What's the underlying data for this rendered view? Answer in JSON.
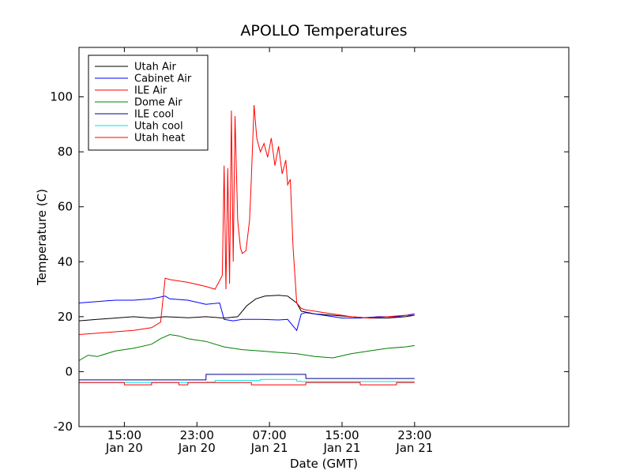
{
  "chart_data": {
    "type": "line",
    "title": "APOLLO Temperatures",
    "xlabel": "Date (GMT)",
    "ylabel": "Temperature (C)",
    "ylim": [
      -20,
      118
    ],
    "xlim": [
      0,
      54
    ],
    "x_unit": "hours since 2022-01-20 10:00 GMT (approx.)",
    "grid": false,
    "legend_position": "top-left",
    "yticks": [
      -20,
      0,
      20,
      40,
      60,
      80,
      100
    ],
    "ytick_labels": [
      "-20",
      "0",
      "20",
      "40",
      "60",
      "80",
      "100"
    ],
    "xticks": [
      {
        "x": 5,
        "time": "15:00",
        "date": "Jan 20"
      },
      {
        "x": 13,
        "time": "23:00",
        "date": "Jan 20"
      },
      {
        "x": 21,
        "time": "07:00",
        "date": "Jan 21"
      },
      {
        "x": 29,
        "time": "15:00",
        "date": "Jan 21"
      },
      {
        "x": 37,
        "time": "23:00",
        "date": "Jan 21"
      }
    ],
    "series": [
      {
        "name": "Utah Air",
        "color": "#000000",
        "x": [
          0,
          2,
          4,
          6,
          8,
          9.5,
          11,
          12,
          14,
          16,
          17.5,
          18.5,
          19.5,
          20.5,
          22,
          23,
          24,
          24.5,
          26,
          28,
          30,
          32,
          34,
          36,
          37
        ],
        "y": [
          18.5,
          19,
          19.5,
          20,
          19.5,
          20,
          19.8,
          19.6,
          20,
          19.5,
          20,
          24,
          26.5,
          27.5,
          27.8,
          27.5,
          25,
          22,
          21,
          20.5,
          20,
          19.5,
          19.5,
          20,
          20.5
        ]
      },
      {
        "name": "Cabinet Air",
        "color": "#0000ff",
        "x": [
          0,
          2,
          4,
          6,
          8,
          9.5,
          10,
          12,
          14,
          15.5,
          16,
          17,
          18,
          20,
          22,
          23,
          24,
          24.5,
          25,
          27,
          29,
          31,
          33,
          35,
          37
        ],
        "y": [
          25,
          25.5,
          26,
          26,
          26.5,
          27.5,
          26.5,
          26,
          24.5,
          25,
          19,
          18.5,
          19,
          19,
          18.8,
          19,
          15,
          21,
          21.5,
          20.5,
          19.5,
          19.5,
          20,
          20,
          21
        ]
      },
      {
        "name": "ILE Air",
        "color": "#ff0000",
        "x": [
          0,
          2,
          4,
          6,
          8,
          9,
          9.5,
          10,
          12,
          14,
          15,
          15.8
        ],
        "y": [
          13.5,
          14,
          14.5,
          15,
          16,
          18,
          34,
          33.5,
          32.5,
          31,
          30,
          35
        ]
      },
      {
        "name": "Dome Air",
        "color": "#008000",
        "x": [
          0,
          1,
          2,
          4,
          6,
          8,
          9,
          10,
          11,
          12,
          14,
          16,
          18,
          20,
          22,
          24,
          26,
          28,
          30,
          32,
          34,
          36,
          37
        ],
        "y": [
          4,
          6,
          5.5,
          7.5,
          8.5,
          10,
          12,
          13.5,
          13,
          12,
          11,
          9,
          8,
          7.5,
          7,
          6.5,
          5.5,
          5,
          6.5,
          7.5,
          8.5,
          9,
          9.5
        ]
      },
      {
        "name": "ILE cool",
        "color": "#00008b",
        "x": [
          0,
          14,
          14.01,
          25,
          25.01,
          37
        ],
        "y": [
          -3,
          -3,
          -1,
          -1,
          -2.5,
          -2.5
        ]
      },
      {
        "name": "Utah cool",
        "color": "#00e5ee",
        "x": [
          0,
          14,
          14.01,
          15,
          15.01,
          20,
          20.01,
          24,
          24.01,
          24.5,
          24.51,
          37
        ],
        "y": [
          -4,
          -4,
          -3.8,
          -3.8,
          -3.2,
          -3.2,
          -2.8,
          -2.8,
          -3.5,
          -3.5,
          -3.6,
          -3.6
        ]
      },
      {
        "name": "Utah heat",
        "color": "#ff0000",
        "x": [
          15.8,
          16,
          16.2,
          16.4,
          16.6,
          16.8,
          17,
          17.2,
          17.5,
          17.8,
          18,
          18.4,
          18.8,
          19,
          19.3,
          19.6,
          20,
          20.4,
          20.8,
          21.2,
          21.6,
          22,
          22.4,
          22.8,
          23,
          23.3,
          23.6,
          24,
          24.5,
          25,
          26,
          27,
          28,
          30,
          32,
          34,
          36,
          37
        ],
        "y": [
          35,
          75,
          30,
          74,
          32,
          95,
          40,
          93,
          55,
          45,
          43,
          44,
          55,
          70,
          97,
          85,
          80,
          83,
          78,
          85,
          75,
          82,
          72,
          77,
          68,
          70,
          45,
          25,
          23,
          22.5,
          22,
          21.5,
          21,
          20,
          19.5,
          20,
          20.5,
          20.5
        ]
      }
    ],
    "steps": [
      {
        "series_color": "#ff0000",
        "x": [
          0,
          5,
          5.01,
          8,
          8.01,
          11,
          11.01,
          12,
          12.01,
          19,
          19.01,
          25,
          25.01,
          31,
          31.01,
          35,
          35.01,
          37
        ],
        "y": [
          -4,
          -4,
          -4.8,
          -4.8,
          -4,
          -4,
          -4.8,
          -4.8,
          -4,
          -4,
          -4.8,
          -4.8,
          -4,
          -4,
          -4.8,
          -4.8,
          -4,
          -4
        ]
      }
    ]
  }
}
